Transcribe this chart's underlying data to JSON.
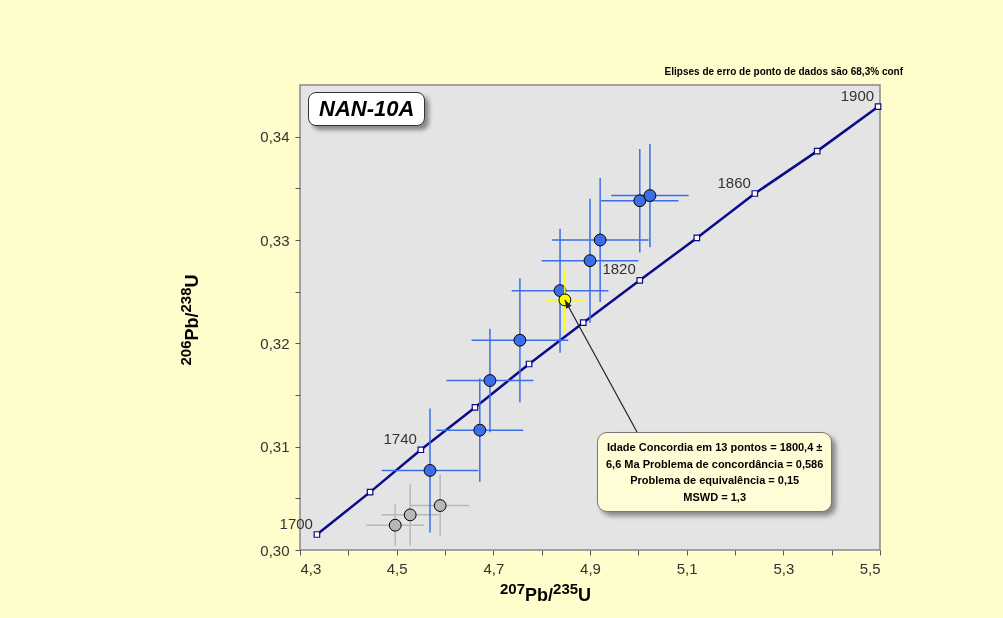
{
  "chart_data": {
    "type": "scatter",
    "title": "NAN-10A",
    "xlabel": "$^{207}$Pb/$^{235}$U",
    "ylabel": "$^{206}$Pb/$^{238}$U",
    "xlim": [
      4.3,
      5.5
    ],
    "ylim": [
      0.3,
      0.345
    ],
    "xticks": [
      {
        "value": 4.3,
        "label": "4,3"
      },
      {
        "value": 4.4,
        "label": null
      },
      {
        "value": 4.5,
        "label": "4,5"
      },
      {
        "value": 4.6,
        "label": null
      },
      {
        "value": 4.7,
        "label": "4,7"
      },
      {
        "value": 4.8,
        "label": null
      },
      {
        "value": 4.9,
        "label": "4,9"
      },
      {
        "value": 5.0,
        "label": null
      },
      {
        "value": 5.1,
        "label": "5,1"
      },
      {
        "value": 5.2,
        "label": null
      },
      {
        "value": 5.3,
        "label": "5,3"
      },
      {
        "value": 5.4,
        "label": null
      },
      {
        "value": 5.5,
        "label": "5,5"
      }
    ],
    "yticks": [
      {
        "value": 0.3,
        "label": "0,30"
      },
      {
        "value": 0.305,
        "label": null
      },
      {
        "value": 0.31,
        "label": "0,31"
      },
      {
        "value": 0.315,
        "label": null
      },
      {
        "value": 0.32,
        "label": "0,32"
      },
      {
        "value": 0.325,
        "label": null
      },
      {
        "value": 0.33,
        "label": "0,33"
      },
      {
        "value": 0.335,
        "label": null
      },
      {
        "value": 0.34,
        "label": "0,34"
      }
    ],
    "series": [
      {
        "type": "line",
        "color": "#0a0a8c",
        "marker": "square",
        "x": [
          4.335,
          4.445,
          4.55,
          4.662,
          4.774,
          4.886,
          5.003,
          5.121,
          5.241,
          5.37,
          5.496
        ],
        "values": [
          0.3015,
          0.3056,
          0.3097,
          0.3138,
          0.318,
          0.322,
          0.3261,
          0.3302,
          0.3345,
          0.3386,
          0.3429
        ]
      },
      {
        "colors": [
          "#b8b8b8",
          "#b8b8b8",
          "#b8b8b8",
          "#3b6ee8",
          "#3b6ee8",
          "#3b6ee8",
          "#3b6ee8",
          "#3b6ee8",
          "#3b6ee8",
          "#3b6ee8",
          "#3b6ee8",
          "#3b6ee8"
        ],
        "x": [
          4.497,
          4.528,
          4.59,
          4.569,
          4.672,
          4.693,
          4.755,
          4.838,
          4.9,
          4.921,
          5.003,
          5.024
        ],
        "values": [
          0.3024,
          0.3034,
          0.3043,
          0.3077,
          0.3116,
          0.3164,
          0.3203,
          0.3251,
          0.328,
          0.33,
          0.3338,
          0.3343
        ],
        "xerrors": [
          0.06,
          0.06,
          0.06,
          0.1,
          0.09,
          0.09,
          0.1,
          0.1,
          0.1,
          0.1,
          0.08,
          0.08
        ],
        "errors": [
          0.002,
          0.003,
          0.003,
          0.006,
          0.005,
          0.005,
          0.006,
          0.006,
          0.006,
          0.006,
          0.005,
          0.005
        ]
      },
      {
        "color": "#ffff00",
        "x": [
          4.848
        ],
        "values": [
          0.3242
        ],
        "xerrors": [
          0.04
        ],
        "errors": [
          0.003
        ]
      }
    ],
    "annotations": [
      "Elipses de erro de ponto de dados são 68,3% conf",
      {
        "text": "Idade Concordia em 13 pontos = 1800,4 ±\n6,6 Ma Problema de concordância = 0,586\nProblema de equivalência = 0,15\nMSWD = 1,3",
        "x": 4.848,
        "y": 0.3242
      },
      {
        "text": "1700",
        "x": 4.335,
        "y": 0.3015
      },
      {
        "text": "1740",
        "x": 4.55,
        "y": 0.3097
      },
      {
        "text": "1820",
        "x": 5.003,
        "y": 0.3261
      },
      {
        "text": "1860",
        "x": 5.241,
        "y": 0.3345
      },
      {
        "text": "1900",
        "x": 5.496,
        "y": 0.3429
      }
    ],
    "grid": false
  }
}
